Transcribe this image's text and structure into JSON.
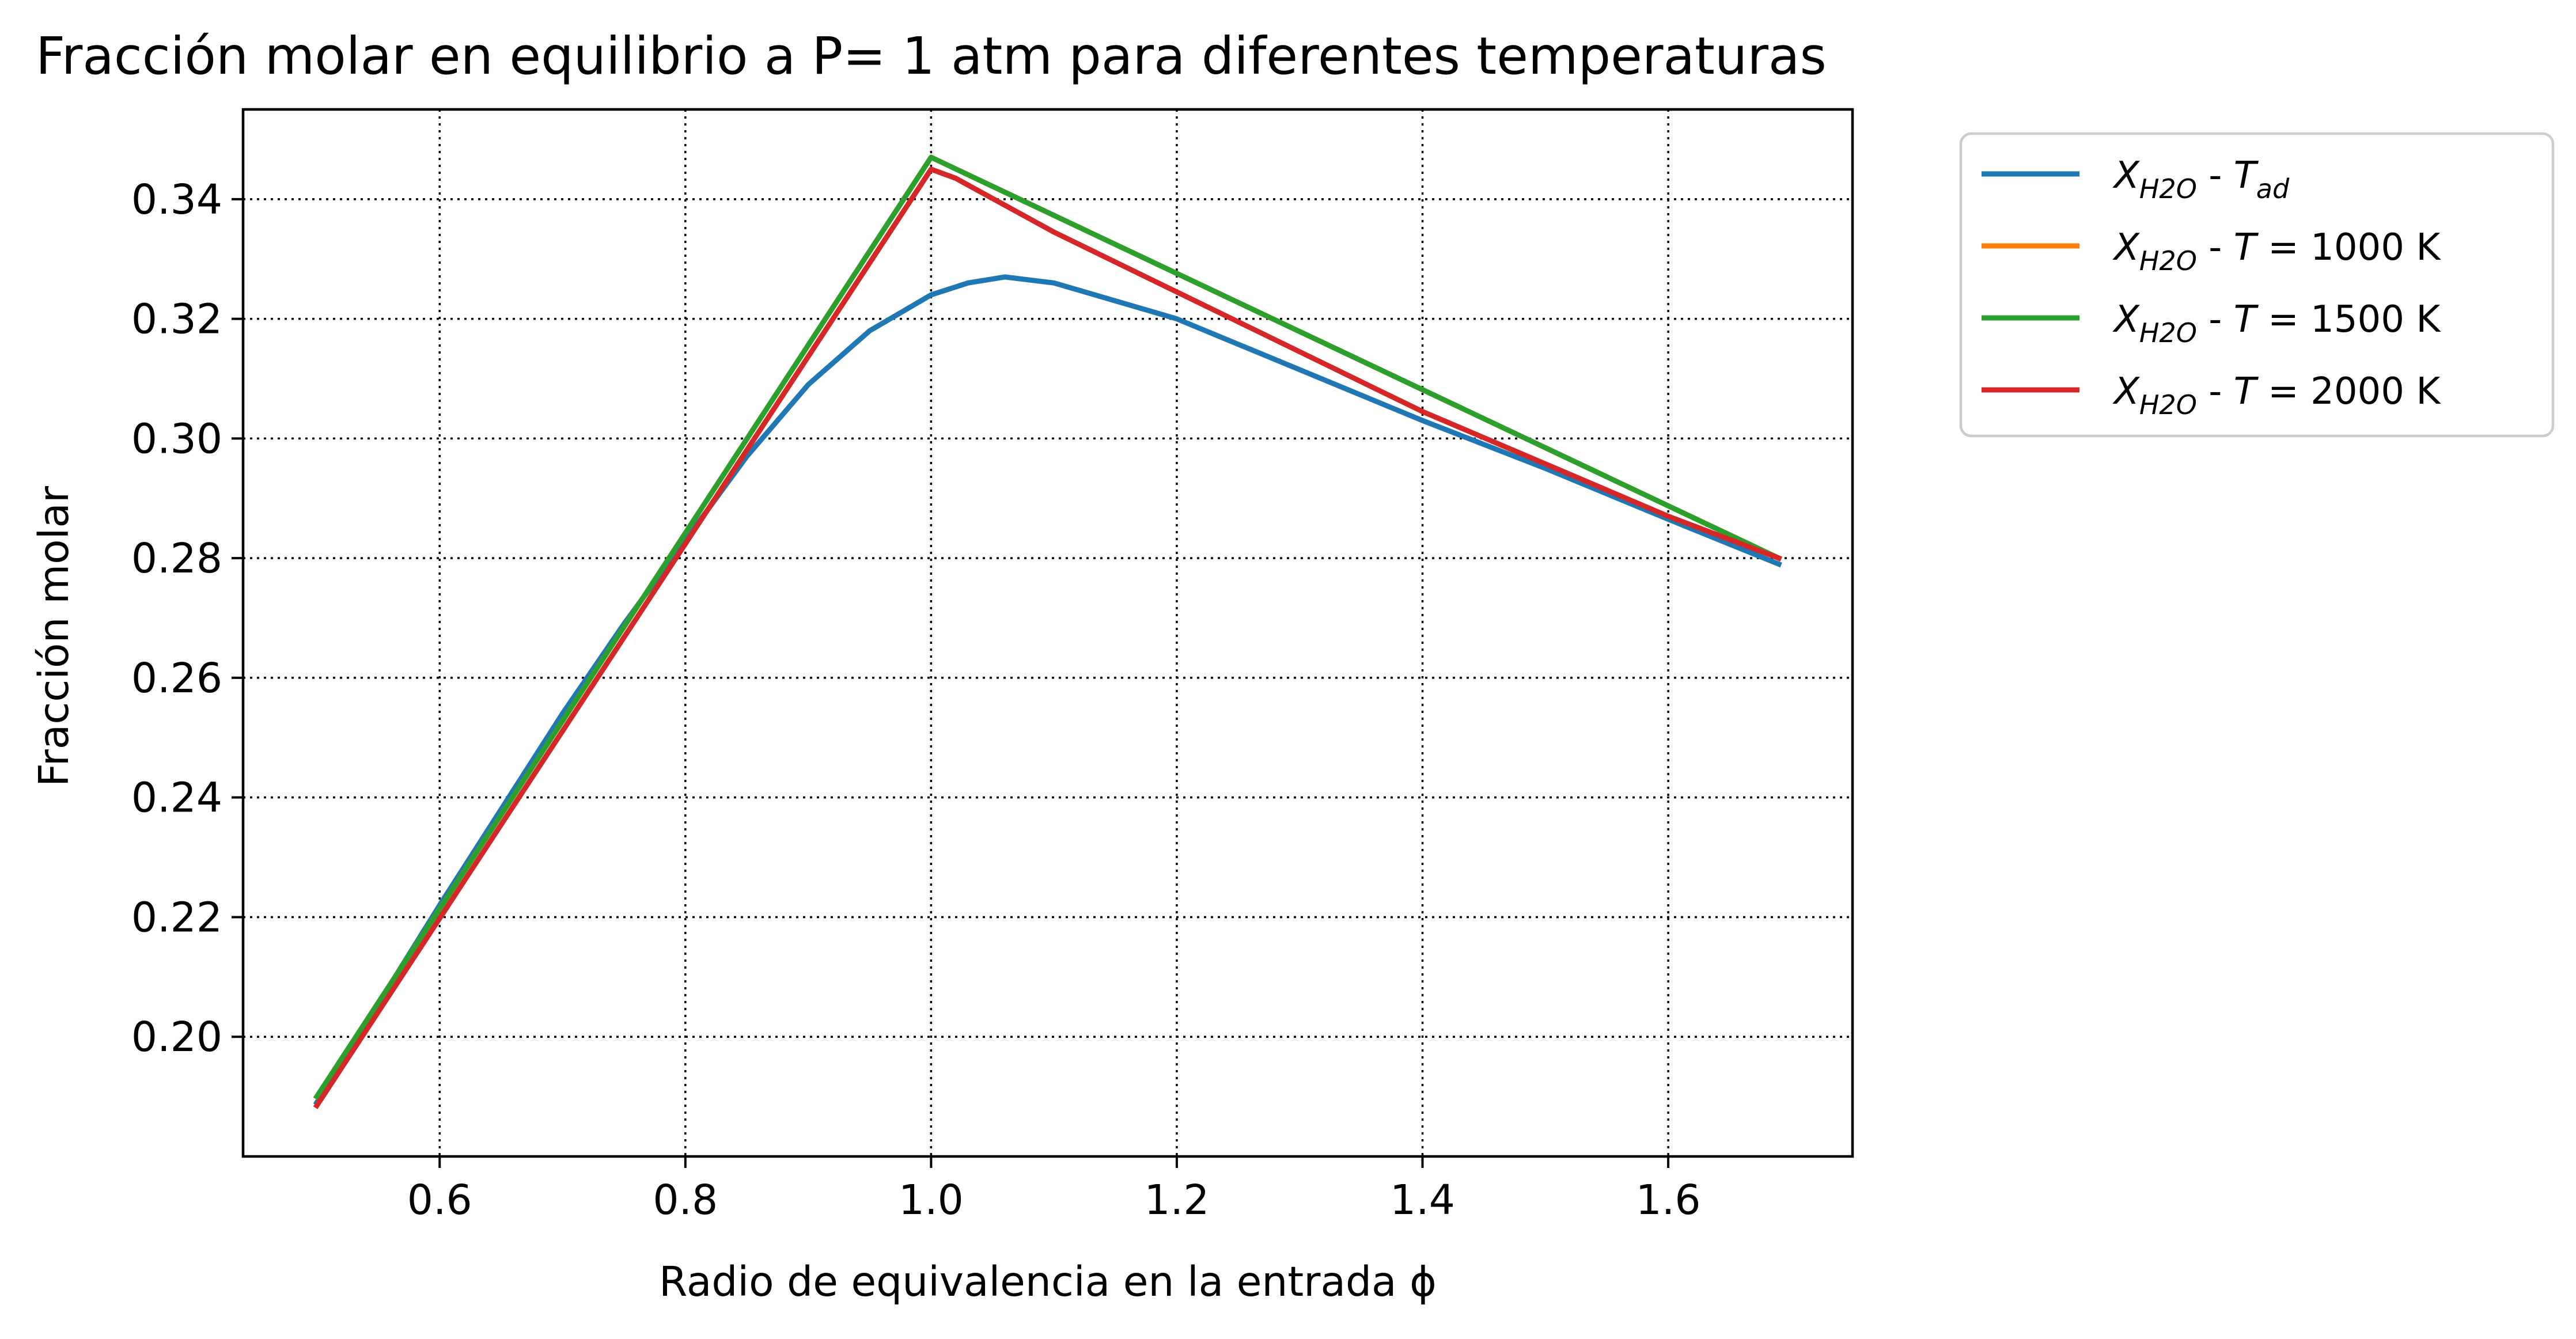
{
  "chart_data": {
    "type": "line",
    "title": "Fracción molar en equilibrio a P= 1 atm para diferentes temperaturas",
    "xlabel": "Radio de equivalencia en la entrada ϕ",
    "ylabel": "Fracción molar",
    "xlim": [
      0.44,
      1.75
    ],
    "ylim": [
      0.18,
      0.355
    ],
    "xticks": [
      0.6,
      0.8,
      1.0,
      1.2,
      1.4,
      1.6
    ],
    "xtick_labels": [
      "0.6",
      "0.8",
      "1.0",
      "1.2",
      "1.4",
      "1.6"
    ],
    "yticks": [
      0.2,
      0.22,
      0.24,
      0.26,
      0.28,
      0.3,
      0.32,
      0.34
    ],
    "ytick_labels": [
      "0.20",
      "0.22",
      "0.24",
      "0.26",
      "0.28",
      "0.30",
      "0.32",
      "0.34"
    ],
    "grid": true,
    "legend_position": "outside-right-top",
    "series": [
      {
        "name": "X_H2O - T_ad",
        "legend": {
          "sym": "X",
          "sub": "H2O",
          "mid": " - ",
          "tsym": "T",
          "tsub": "ad",
          "rest": ""
        },
        "color": "#1f77b4",
        "x": [
          0.5,
          0.6,
          0.7,
          0.75,
          0.8,
          0.85,
          0.9,
          0.95,
          1.0,
          1.03,
          1.06,
          1.1,
          1.15,
          1.2,
          1.3,
          1.4,
          1.5,
          1.6,
          1.69
        ],
        "y": [
          0.189,
          0.222,
          0.254,
          0.269,
          0.283,
          0.297,
          0.309,
          0.318,
          0.324,
          0.326,
          0.327,
          0.326,
          0.323,
          0.32,
          0.3115,
          0.303,
          0.295,
          0.2865,
          0.279
        ]
      },
      {
        "name": "X_H2O - T = 1000 K",
        "legend": {
          "sym": "X",
          "sub": "H2O",
          "mid": " - ",
          "tsym": "T",
          "tsub": "",
          "rest": " = 1000 K"
        },
        "color": "#ff7f0e",
        "x": [
          0.5,
          1.0,
          1.69
        ],
        "y": [
          0.19,
          0.347,
          0.28
        ]
      },
      {
        "name": "X_H2O - T = 1500 K",
        "legend": {
          "sym": "X",
          "sub": "H2O",
          "mid": " - ",
          "tsym": "T",
          "tsub": "",
          "rest": " = 1500 K"
        },
        "color": "#2ca02c",
        "x": [
          0.5,
          1.0,
          1.69
        ],
        "y": [
          0.19,
          0.347,
          0.28
        ]
      },
      {
        "name": "X_H2O - T = 2000 K",
        "legend": {
          "sym": "X",
          "sub": "H2O",
          "mid": " - ",
          "tsym": "T",
          "tsub": "",
          "rest": " = 2000 K"
        },
        "color": "#d62728",
        "x": [
          0.5,
          1.0,
          1.02,
          1.1,
          1.2,
          1.4,
          1.6,
          1.69
        ],
        "y": [
          0.1885,
          0.345,
          0.3435,
          0.3345,
          0.3245,
          0.3045,
          0.287,
          0.28
        ]
      }
    ]
  }
}
